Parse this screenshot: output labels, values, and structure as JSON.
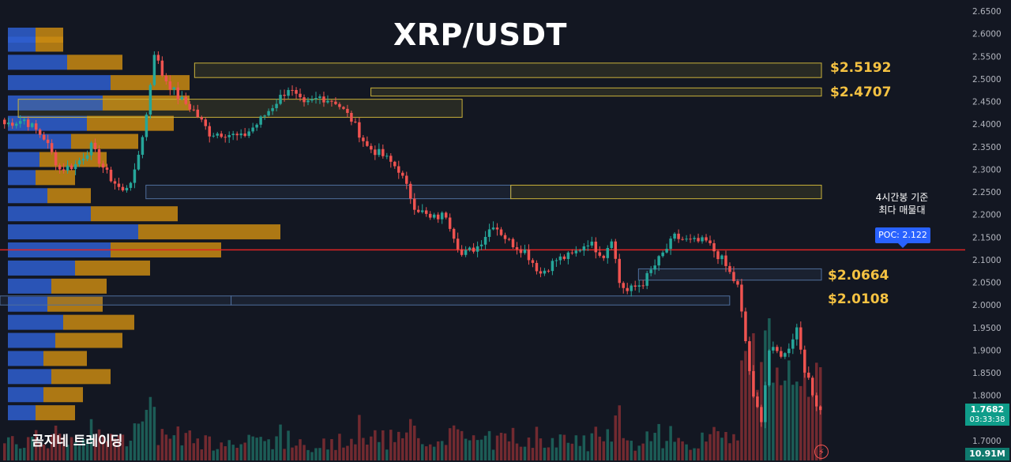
{
  "chart_data": {
    "type": "candlestick",
    "title": "XRP/USDT",
    "watermark": "곰지네 트레이딩",
    "annotation": "4시간봉 기준\n최다 매물대",
    "poc_label": "POC: 2.122",
    "poc_value": 2.122,
    "last_price": "1.7682",
    "countdown": "03:33:38",
    "volume_label": "10.91M",
    "ylim": [
      1.69,
      2.66
    ],
    "yticks": [
      "2.6500",
      "2.6000",
      "2.5500",
      "2.5000",
      "2.4500",
      "2.4000",
      "2.3500",
      "2.3000",
      "2.2500",
      "2.2000",
      "2.1500",
      "2.1000",
      "2.0500",
      "2.0000",
      "1.9500",
      "1.9000",
      "1.8500",
      "1.8000",
      "1.7500",
      "1.7000"
    ],
    "levels": [
      {
        "label": "$2.5192",
        "value": 2.5192
      },
      {
        "label": "$2.4707",
        "value": 2.4707
      },
      {
        "label": "$2.0664",
        "value": 2.0664
      },
      {
        "label": "$2.0108",
        "value": 2.0108
      }
    ],
    "zones": [
      {
        "top": 2.535,
        "bottom": 2.503,
        "start": 0.16,
        "end": 0.81,
        "kind": "yellow"
      },
      {
        "top": 2.48,
        "bottom": 2.462,
        "start": 0.305,
        "end": 0.81,
        "kind": "yellow"
      },
      {
        "top": 2.455,
        "bottom": 2.415,
        "start": 0.015,
        "end": 0.38,
        "kind": "yellow"
      },
      {
        "top": 2.265,
        "bottom": 2.235,
        "start": 0.12,
        "end": 0.42,
        "kind": "blue"
      },
      {
        "top": 2.265,
        "bottom": 2.235,
        "start": 0.42,
        "end": 0.705,
        "kind": "yellow"
      },
      {
        "top": 2.08,
        "bottom": 2.055,
        "start": 0.525,
        "end": 0.81,
        "kind": "blue"
      },
      {
        "top": 2.02,
        "bottom": 2.0,
        "start": 0.0,
        "end": 0.19,
        "kind": "blue"
      },
      {
        "top": 2.02,
        "bottom": 2.0,
        "start": 0.19,
        "end": 0.6,
        "kind": "blue"
      },
      {
        "top": 2.025,
        "bottom": 1.998,
        "start": 0.735,
        "end": 0.81,
        "kind": "yellow"
      }
    ],
    "volume_profile": [
      {
        "price": 2.595,
        "up": 35,
        "down": 35
      },
      {
        "price": 2.575,
        "up": 35,
        "down": 35
      },
      {
        "price": 2.535,
        "up": 75,
        "down": 70
      },
      {
        "price": 2.49,
        "up": 130,
        "down": 100
      },
      {
        "price": 2.445,
        "up": 120,
        "down": 110
      },
      {
        "price": 2.4,
        "up": 100,
        "down": 110
      },
      {
        "price": 2.36,
        "up": 80,
        "down": 85
      },
      {
        "price": 2.32,
        "up": 40,
        "down": 85
      },
      {
        "price": 2.28,
        "up": 35,
        "down": 50
      },
      {
        "price": 2.24,
        "up": 50,
        "down": 55
      },
      {
        "price": 2.2,
        "up": 105,
        "down": 110
      },
      {
        "price": 2.16,
        "up": 165,
        "down": 180
      },
      {
        "price": 2.12,
        "up": 130,
        "down": 140
      },
      {
        "price": 2.08,
        "up": 85,
        "down": 95
      },
      {
        "price": 2.04,
        "up": 55,
        "down": 70
      },
      {
        "price": 2.0,
        "up": 50,
        "down": 70
      },
      {
        "price": 1.96,
        "up": 70,
        "down": 90
      },
      {
        "price": 1.92,
        "up": 60,
        "down": 85
      },
      {
        "price": 1.88,
        "up": 45,
        "down": 55
      },
      {
        "price": 1.84,
        "up": 55,
        "down": 75
      },
      {
        "price": 1.8,
        "up": 45,
        "down": 50
      },
      {
        "price": 1.76,
        "up": 35,
        "down": 50
      }
    ]
  },
  "colors": {
    "background": "#131722",
    "up": "#26a69a",
    "down": "#ef5350",
    "vol_up": "#1f6e64",
    "vol_down": "#8b2f35",
    "poc_line": "#e02424",
    "profile_up": "#2f5fd0",
    "profile_down": "#c98a12",
    "zone_yellow": "#c9b13a",
    "zone_blue": "#4f6e9c",
    "axis_text": "#b2b5be"
  }
}
